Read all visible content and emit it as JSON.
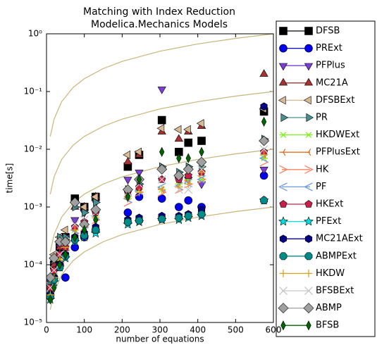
{
  "chart_data": {
    "type": "scatter",
    "title": "Matching with Index Reduction",
    "subtitle": "Modelica.Mechanics Models",
    "x_label": "number of equations",
    "y_label": "time[s]",
    "yscale": "log",
    "xlim": [
      0,
      600
    ],
    "ylim": [
      1e-05,
      1
    ],
    "xticks": [
      0,
      100,
      200,
      300,
      400,
      500,
      600
    ],
    "yticks": [
      {
        "value": 1,
        "label": "10⁰"
      },
      {
        "value": 0.1,
        "label": "10⁻¹"
      },
      {
        "value": 0.01,
        "label": "10⁻²"
      },
      {
        "value": 0.001,
        "label": "10⁻³"
      },
      {
        "value": 0.0001,
        "label": "10⁻⁴"
      },
      {
        "value": 1e-05,
        "label": "10⁻⁵"
      }
    ],
    "guide_color": "#c8b478",
    "guide_x": [
      10,
      20,
      40,
      70,
      100,
      150,
      200,
      300,
      400,
      500,
      600
    ],
    "guides": [
      [
        0.0167,
        0.0333,
        0.0667,
        0.117,
        0.167,
        0.25,
        0.333,
        0.5,
        0.667,
        0.833,
        1
      ],
      [
        0.00167,
        0.00333,
        0.00667,
        0.0117,
        0.0167,
        0.025,
        0.0333,
        0.05,
        0.0667,
        0.0833,
        0.1
      ],
      [
        0.000167,
        0.000333,
        0.000667,
        0.00117,
        0.00167,
        0.0025,
        0.00333,
        0.005,
        0.00667,
        0.00833,
        0.01
      ],
      [
        1.67e-05,
        3.33e-05,
        6.67e-05,
        0.000117,
        0.000167,
        0.00025,
        0.000333,
        0.0005,
        0.000667,
        0.000833,
        0.001
      ]
    ],
    "x": [
      10,
      20,
      35,
      50,
      75,
      100,
      130,
      215,
      245,
      305,
      350,
      375,
      410,
      575
    ],
    "series": [
      {
        "name": "DFSB",
        "color": "#000000",
        "marker": "square",
        "values": [
          4e-05,
          0.0001,
          0.0002,
          0.0003,
          0.0014,
          0.001,
          0.0015,
          0.005,
          0.008,
          0.032,
          0.009,
          0.013,
          0.014,
          0.045
        ]
      },
      {
        "name": "PRExt",
        "color": "#0000ee",
        "marker": "circle",
        "values": [
          3e-05,
          6e-05,
          0.0001,
          6e-05,
          0.0002,
          0.0003,
          0.0004,
          0.0008,
          0.0015,
          0.0014,
          0.001,
          0.0013,
          0.001,
          0.0035
        ]
      },
      {
        "name": "PFPlus",
        "color": "#7b3fd6",
        "marker": "tri-down",
        "values": [
          5e-05,
          0.0001,
          0.0002,
          0.0003,
          0.0006,
          0.0008,
          0.0012,
          0.003,
          0.004,
          0.11,
          0.003,
          0.003,
          0.0025,
          0.0045
        ]
      },
      {
        "name": "MC21A",
        "color": "#a83232",
        "marker": "tri-up",
        "values": [
          4e-05,
          0.0001,
          0.0002,
          0.0003,
          0.001,
          0.001,
          0.0015,
          0.006,
          0.008,
          0.02,
          0.015,
          0.02,
          0.025,
          0.2
        ]
      },
      {
        "name": "DFSBExt",
        "color": "#d9b894",
        "marker": "tri-left",
        "values": [
          6e-05,
          0.00015,
          0.0003,
          0.0004,
          0.0012,
          0.001,
          0.0015,
          0.008,
          0.009,
          0.023,
          0.022,
          0.022,
          0.028,
          0.05
        ]
      },
      {
        "name": "PR",
        "color": "#4a8f8f",
        "marker": "tri-right",
        "values": [
          5e-05,
          0.00012,
          0.0003,
          0.0003,
          0.001,
          0.0008,
          0.0012,
          0.002,
          0.0025,
          0.005,
          0.004,
          0.005,
          0.005,
          0.015
        ]
      },
      {
        "name": "HKDWExt",
        "color": "#80f020",
        "marker": "star-line",
        "values": [
          3e-05,
          7e-05,
          0.00013,
          0.0002,
          0.0004,
          0.0005,
          0.0007,
          0.0015,
          0.002,
          0.002,
          0.0025,
          0.003,
          0.003,
          0.007
        ]
      },
      {
        "name": "PFPlusExt",
        "color": "#e07020",
        "marker": "tri-line",
        "values": [
          3e-05,
          7e-05,
          0.00012,
          0.0002,
          0.0004,
          0.0005,
          0.0007,
          0.0015,
          0.002,
          0.002,
          0.0023,
          0.0028,
          0.004,
          0.008
        ]
      },
      {
        "name": "HK",
        "color": "#ff8060",
        "marker": "arrow",
        "values": [
          3e-05,
          6e-05,
          0.00011,
          0.00018,
          0.00035,
          0.00045,
          0.0006,
          0.0012,
          0.0018,
          0.0018,
          0.002,
          0.0025,
          0.003,
          0.006
        ]
      },
      {
        "name": "PF",
        "color": "#6a9ae8",
        "marker": "arrow-left",
        "values": [
          3.5e-05,
          7e-05,
          0.00013,
          0.0002,
          0.0004,
          0.0005,
          0.0007,
          0.0014,
          0.0019,
          0.0022,
          0.0023,
          0.0026,
          0.003,
          0.007
        ]
      },
      {
        "name": "HKExt",
        "color": "#c8204a",
        "marker": "pentagon",
        "values": [
          4e-05,
          8e-05,
          0.00015,
          0.0002,
          0.00045,
          0.00055,
          0.0008,
          0.0018,
          0.0022,
          0.003,
          0.003,
          0.0035,
          0.004,
          0.009
        ]
      },
      {
        "name": "PFExt",
        "color": "#00e0e0",
        "marker": "star",
        "values": [
          2.5e-05,
          5e-05,
          9e-05,
          0.00013,
          0.00025,
          0.0003,
          0.00035,
          0.0005,
          0.00055,
          0.0006,
          0.0006,
          0.00065,
          0.0007,
          0.0013
        ]
      },
      {
        "name": "MC21AExt",
        "color": "#000080",
        "marker": "hexagon",
        "values": [
          3e-05,
          6e-05,
          0.0001,
          0.00015,
          0.0003,
          0.00035,
          0.00045,
          0.0006,
          0.00065,
          0.0007,
          0.0007,
          0.00075,
          0.0009,
          0.055
        ]
      },
      {
        "name": "ABMPExt",
        "color": "#008b8b",
        "marker": "octagon",
        "values": [
          2.8e-05,
          5.5e-05,
          9e-05,
          0.00014,
          0.00027,
          0.00032,
          0.0004,
          0.00055,
          0.00058,
          0.00062,
          0.00065,
          0.0007,
          0.00075,
          0.0013
        ]
      },
      {
        "name": "HKDW",
        "color": "#daa520",
        "marker": "plus",
        "values": [
          3e-05,
          6e-05,
          0.00012,
          0.0002,
          0.0004,
          0.0005,
          0.00065,
          0.0014,
          0.0018,
          0.002,
          0.0022,
          0.0025,
          0.004,
          0.008
        ]
      },
      {
        "name": "BFSBExt",
        "color": "#c8c8c8",
        "marker": "x",
        "values": [
          4e-05,
          8e-05,
          0.00015,
          0.00025,
          0.0005,
          0.0006,
          0.0008,
          0.0018,
          0.0025,
          0.003,
          0.002,
          0.002,
          0.0045,
          0.01
        ]
      },
      {
        "name": "ABMP",
        "color": "#a0a0a0",
        "marker": "diamond",
        "values": [
          6e-05,
          0.00013,
          0.00025,
          0.00025,
          0.0012,
          0.0005,
          0.0009,
          0.002,
          0.003,
          0.0045,
          0.0035,
          0.0045,
          0.006,
          0.014
        ]
      },
      {
        "name": "BFSB",
        "color": "#006400",
        "marker": "thin-diamond",
        "values": [
          2.5e-05,
          4e-05,
          0.0001,
          0.00015,
          0.0003,
          0.0004,
          0.0006,
          0.0015,
          0.003,
          0.009,
          0.007,
          0.007,
          0.009,
          0.03
        ]
      }
    ]
  }
}
